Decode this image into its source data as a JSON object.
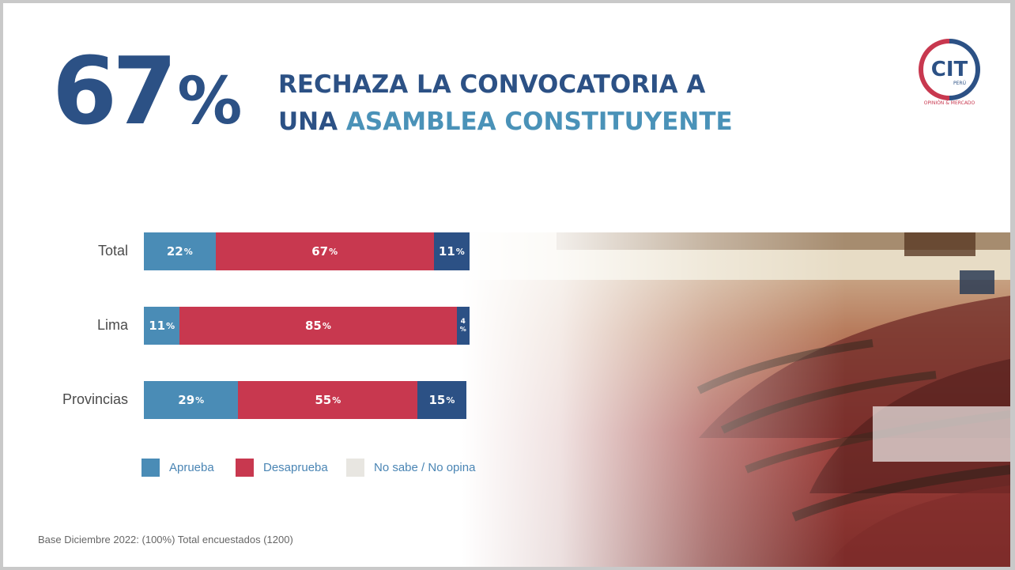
{
  "headline": {
    "big_number": "67",
    "big_unit": "%",
    "line1": "RECHAZA LA CONVOCATORIA A",
    "line2_a": "UNA ",
    "line2_b": "ASAMBLEA CONSTITUYENTE"
  },
  "logo": {
    "text": "CIT",
    "sub": "PERÚ",
    "tagline": "OPINIÓN & MERCADO"
  },
  "colors": {
    "aprueba": "#4a8cb6",
    "desaprueba": "#c8384f",
    "no_sabe": "#2c5185",
    "legend_no_sabe": "#e8e6e1"
  },
  "chart_data": {
    "type": "bar",
    "orientation": "horizontal",
    "stacked": true,
    "categories": [
      "Total",
      "Lima",
      "Provincias"
    ],
    "series": [
      {
        "name": "Aprueba",
        "values": [
          22,
          11,
          29
        ]
      },
      {
        "name": "Desaprueba",
        "values": [
          67,
          85,
          55
        ]
      },
      {
        "name": "No sabe / No opina",
        "values": [
          11,
          4,
          15
        ]
      }
    ],
    "legend": [
      "Aprueba",
      "Desaprueba",
      "No sabe / No opina"
    ],
    "legend_position": "bottom",
    "xlim": [
      0,
      100
    ],
    "unit": "%"
  },
  "footnote": "Base Diciembre 2022: (100%) Total encuestados (1200)",
  "photo": {
    "icon": "parliament-photo"
  }
}
